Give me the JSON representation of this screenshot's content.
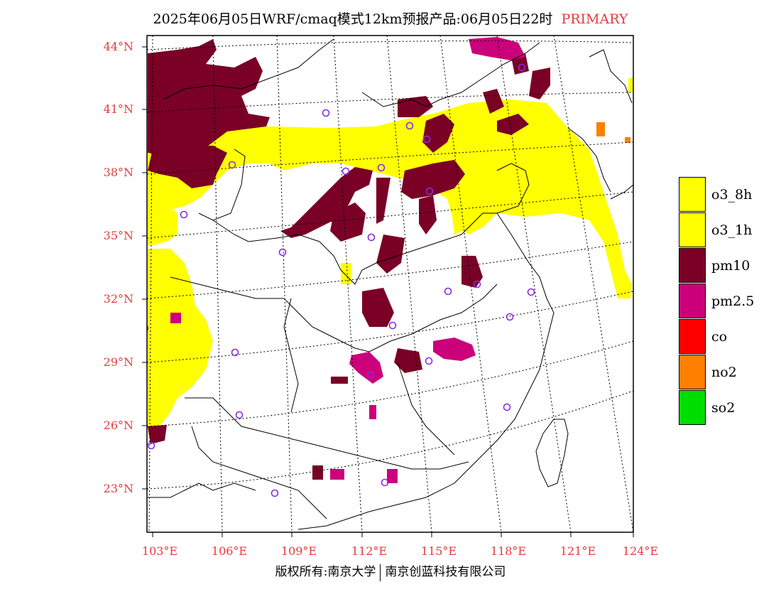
{
  "title": "2025年06月05日WRF/cmaq模式12km预报产品:06月05日22时",
  "title_tag": "PRIMARY",
  "latitudes": [
    "44°N",
    "41°N",
    "38°N",
    "35°N",
    "32°N",
    "29°N",
    "26°N",
    "23°N"
  ],
  "longitudes": [
    "103°E",
    "106°E",
    "109°E",
    "112°E",
    "115°E",
    "118°E",
    "121°E",
    "124°E"
  ],
  "legend": [
    {
      "label": "o3_8h",
      "color": "#ffff00"
    },
    {
      "label": "o3_1h",
      "color": "#ffff00"
    },
    {
      "label": "pm10",
      "color": "#7a0026"
    },
    {
      "label": "pm2.5",
      "color": "#cc007a"
    },
    {
      "label": "co",
      "color": "#ff0000"
    },
    {
      "label": "no2",
      "color": "#ff7f00"
    },
    {
      "label": "so2",
      "color": "#00dd00"
    }
  ],
  "footer_left": "版权所有:南京大学",
  "footer_right": "南京创蓝科技有限公司"
}
